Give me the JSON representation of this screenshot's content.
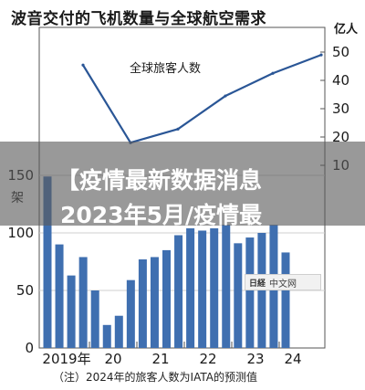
{
  "title": "波音交付的飞机数量与全球航空需求",
  "note": "（注）2024年的旅客人数为IATA的预测值",
  "banner": {
    "line1": "【疫情最新数据消息",
    "line2": "2023年5月/疫情最"
  },
  "watermark": {
    "logo": "日経",
    "text": "中文网"
  },
  "colors": {
    "bar": "#3f6fb0",
    "line": "#2a5696",
    "axis": "#555555",
    "grid": "#cfcfcf"
  },
  "chart_data": {
    "type": "bar+line",
    "left_axis": {
      "unit": "架",
      "ticks": [
        "150",
        "100",
        "50",
        "0"
      ],
      "ylim": [
        0,
        150
      ]
    },
    "right_axis": {
      "unit": "亿人",
      "ticks": [
        "50",
        "40",
        "30",
        "20",
        "10"
      ],
      "ylim": [
        10,
        50
      ]
    },
    "x_tick_labels": [
      "2019年",
      "20",
      "21",
      "22",
      "23",
      "24"
    ],
    "bars": {
      "name": "交付数量",
      "values": [
        149,
        90,
        63,
        79,
        50,
        20,
        28,
        59,
        77,
        79,
        85,
        98,
        104,
        102,
        104,
        107,
        91,
        96,
        100,
        107,
        83
      ]
    },
    "line": {
      "name": "全球旅客人数",
      "x_years": [
        2019,
        2020,
        2021,
        2022,
        2023,
        2024
      ],
      "values": [
        45.4,
        18.0,
        22.8,
        34.5,
        42.5,
        49.0
      ]
    }
  }
}
